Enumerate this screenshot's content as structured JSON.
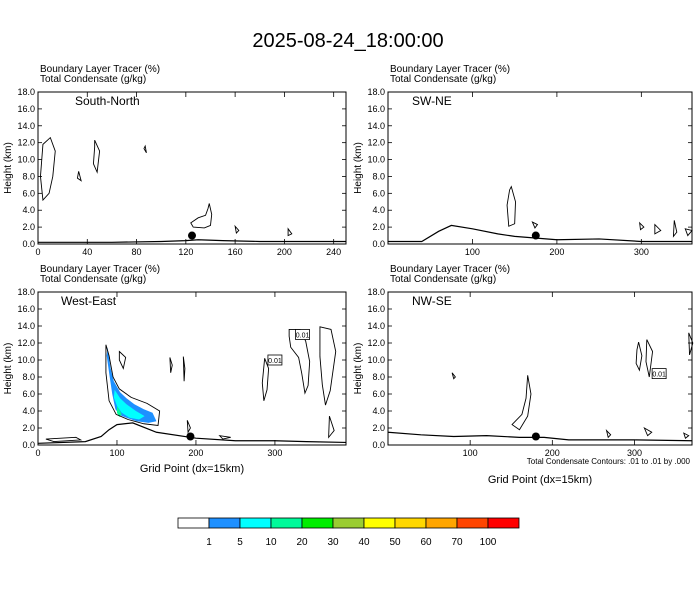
{
  "title": "2025-08-24_18:00:00",
  "panel_label_line1": "Boundary Layer Tracer   (%)",
  "panel_label_line2": "Total Condensate   (g/kg)",
  "ylabel": "Height (km)",
  "xlabel": "Grid Point (dx=15km)",
  "contour_note": "Total Condensate Contours: .01 to .01 by .000",
  "contour_label": "0.01",
  "colors": {
    "levels": [
      "#ffffff",
      "#1e90ff",
      "#00ffff",
      "#00fa9a",
      "#00ee00",
      "#9acd32",
      "#ffff00",
      "#ffd700",
      "#ffa500",
      "#ff4500",
      "#ff0000"
    ],
    "boundaries": [
      "1",
      "5",
      "10",
      "20",
      "30",
      "40",
      "50",
      "60",
      "70",
      "100"
    ]
  },
  "chart_data": [
    {
      "type": "contour",
      "name": "South-North",
      "xlim": [
        0,
        250
      ],
      "ylim": [
        0,
        18
      ],
      "xticks": [
        "0",
        "40",
        "80",
        "120",
        "160",
        "200",
        "240"
      ],
      "yticks": [
        "0.0",
        "2.0",
        "4.0",
        "6.0",
        "8.0",
        "10.0",
        "12.0",
        "14.0",
        "16.0",
        "18.0"
      ],
      "terrain": [
        [
          0,
          0.2
        ],
        [
          60,
          0.2
        ],
        [
          100,
          0.3
        ],
        [
          120,
          0.4
        ],
        [
          130,
          0.5
        ],
        [
          150,
          0.4
        ],
        [
          180,
          0.3
        ],
        [
          250,
          0.3
        ]
      ],
      "point": [
        125,
        1.0
      ],
      "shading": []
    },
    {
      "type": "contour",
      "name": "SW-NE",
      "xlim": [
        0,
        360
      ],
      "ylim": [
        0,
        18
      ],
      "xticks": [
        "100",
        "200",
        "300"
      ],
      "yticks": [
        "0.0",
        "2.0",
        "4.0",
        "6.0",
        "8.0",
        "10.0",
        "12.0",
        "14.0",
        "16.0",
        "18.0"
      ],
      "terrain": [
        [
          0,
          0.3
        ],
        [
          40,
          0.3
        ],
        [
          60,
          1.5
        ],
        [
          75,
          2.2
        ],
        [
          100,
          1.8
        ],
        [
          130,
          1.2
        ],
        [
          150,
          0.9
        ],
        [
          200,
          0.5
        ],
        [
          250,
          0.6
        ],
        [
          300,
          0.3
        ],
        [
          360,
          0.3
        ]
      ],
      "point": [
        175,
        1.0
      ],
      "shading": []
    },
    {
      "type": "contour",
      "name": "West-East",
      "xlim": [
        0,
        390
      ],
      "ylim": [
        0,
        18
      ],
      "xticks": [
        "0",
        "100",
        "200",
        "300"
      ],
      "yticks": [
        "0.0",
        "2.0",
        "4.0",
        "6.0",
        "8.0",
        "10.0",
        "12.0",
        "14.0",
        "16.0",
        "18.0"
      ],
      "terrain": [
        [
          0,
          0.2
        ],
        [
          60,
          0.4
        ],
        [
          80,
          1.0
        ],
        [
          90,
          1.8
        ],
        [
          100,
          2.4
        ],
        [
          120,
          2.6
        ],
        [
          150,
          1.5
        ],
        [
          200,
          0.8
        ],
        [
          250,
          0.5
        ],
        [
          300,
          0.5
        ],
        [
          340,
          0.4
        ],
        [
          390,
          0.3
        ]
      ],
      "point": [
        193,
        1.0
      ],
      "shading": [
        {
          "level": 1,
          "polygon": [
            [
              88,
              11.5
            ],
            [
              92,
              9
            ],
            [
              96,
              7.5
            ],
            [
              104,
              6.2
            ],
            [
              112,
              5.5
            ],
            [
              122,
              4.8
            ],
            [
              134,
              4.2
            ],
            [
              145,
              3.8
            ],
            [
              150,
              2.8
            ],
            [
              140,
              2.6
            ],
            [
              125,
              2.8
            ],
            [
              112,
              3.2
            ],
            [
              104,
              3.5
            ],
            [
              98,
              4.2
            ],
            [
              94,
              6
            ],
            [
              90,
              8.5
            ],
            [
              87,
              10.5
            ]
          ]
        },
        {
          "level": 2,
          "polygon": [
            [
              97,
              6.5
            ],
            [
              104,
              5.5
            ],
            [
              112,
              4.8
            ],
            [
              124,
              4.0
            ],
            [
              135,
              3.4
            ],
            [
              128,
              3.0
            ],
            [
              116,
              3.2
            ],
            [
              106,
              3.8
            ],
            [
              100,
              4.6
            ],
            [
              96,
              5.6
            ]
          ]
        },
        {
          "level": 3,
          "polygon": [
            [
              100,
              4.6
            ],
            [
              104,
              4.0
            ],
            [
              106,
              3.6
            ],
            [
              103,
              3.3
            ],
            [
              100,
              3.8
            ]
          ]
        }
      ]
    },
    {
      "type": "contour",
      "name": "NW-SE",
      "xlim": [
        0,
        370
      ],
      "ylim": [
        0,
        18
      ],
      "xticks": [
        "100",
        "200",
        "300"
      ],
      "yticks": [
        "0.0",
        "2.0",
        "4.0",
        "6.0",
        "8.0",
        "10.0",
        "12.0",
        "14.0",
        "16.0",
        "18.0"
      ],
      "terrain": [
        [
          0,
          1.5
        ],
        [
          40,
          1.2
        ],
        [
          80,
          1.0
        ],
        [
          120,
          1.1
        ],
        [
          160,
          0.9
        ],
        [
          190,
          0.9
        ],
        [
          220,
          0.6
        ],
        [
          300,
          0.6
        ],
        [
          370,
          0.5
        ]
      ],
      "point": [
        180,
        1.0
      ],
      "shading": []
    }
  ]
}
